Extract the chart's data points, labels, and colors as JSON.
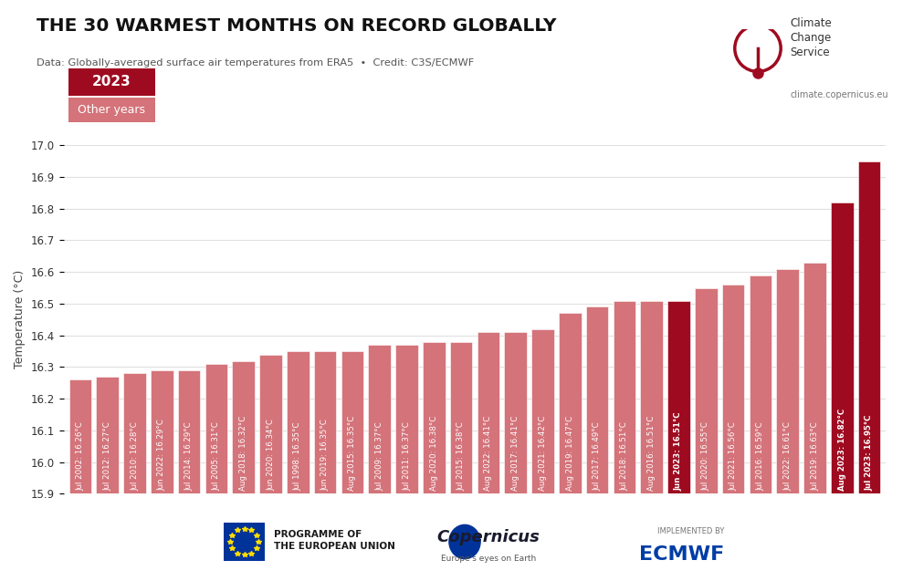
{
  "title": "THE 30 WARMEST MONTHS ON RECORD GLOBALLY",
  "subtitle": "Data: Globally-averaged surface air temperatures from ERA5  •  Credit: C3S/ECMWF",
  "ylabel": "Temperature (°C)",
  "ylim": [
    15.9,
    17.0
  ],
  "yticks": [
    15.9,
    16.0,
    16.1,
    16.2,
    16.3,
    16.4,
    16.5,
    16.6,
    16.7,
    16.8,
    16.9,
    17.0
  ],
  "bars": [
    {
      "label": "Jul 2002: 16.26°C",
      "value": 16.26,
      "year2023": false
    },
    {
      "label": "Jul 2012: 16.27°C",
      "value": 16.27,
      "year2023": false
    },
    {
      "label": "Jul 2010: 16.28°C",
      "value": 16.28,
      "year2023": false
    },
    {
      "label": "Jun 2022: 16.29°C",
      "value": 16.29,
      "year2023": false
    },
    {
      "label": "Jul 2014: 16.29°C",
      "value": 16.29,
      "year2023": false
    },
    {
      "label": "Jul 2005: 16.31°C",
      "value": 16.31,
      "year2023": false
    },
    {
      "label": "Aug 2018: 16.32°C",
      "value": 16.32,
      "year2023": false
    },
    {
      "label": "Jun 2020: 16.34°C",
      "value": 16.34,
      "year2023": false
    },
    {
      "label": "Jul 1998: 16.35°C",
      "value": 16.35,
      "year2023": false
    },
    {
      "label": "Jun 2019: 16.35°C",
      "value": 16.35,
      "year2023": false
    },
    {
      "label": "Aug 2015: 16.35°C",
      "value": 16.35,
      "year2023": false
    },
    {
      "label": "Jul 2009: 16.37°C",
      "value": 16.37,
      "year2023": false
    },
    {
      "label": "Jul 2011: 16.37°C",
      "value": 16.37,
      "year2023": false
    },
    {
      "label": "Aug 2020: 16.38°C",
      "value": 16.38,
      "year2023": false
    },
    {
      "label": "Jul 2015: 16.38°C",
      "value": 16.38,
      "year2023": false
    },
    {
      "label": "Aug 2022: 16.41°C",
      "value": 16.41,
      "year2023": false
    },
    {
      "label": "Aug 2017: 16.41°C",
      "value": 16.41,
      "year2023": false
    },
    {
      "label": "Aug 2021: 16.42°C",
      "value": 16.42,
      "year2023": false
    },
    {
      "label": "Aug 2019: 16.47°C",
      "value": 16.47,
      "year2023": false
    },
    {
      "label": "Jul 2017: 16.49°C",
      "value": 16.49,
      "year2023": false
    },
    {
      "label": "Jul 2018: 16.51°C",
      "value": 16.51,
      "year2023": false
    },
    {
      "label": "Aug 2016: 16.51°C",
      "value": 16.51,
      "year2023": false
    },
    {
      "label": "Jun 2023: 16.51°C",
      "value": 16.51,
      "year2023": true
    },
    {
      "label": "Jul 2020: 16.55°C",
      "value": 16.55,
      "year2023": false
    },
    {
      "label": "Jul 2021: 16.56°C",
      "value": 16.56,
      "year2023": false
    },
    {
      "label": "Jul 2016: 16.59°C",
      "value": 16.59,
      "year2023": false
    },
    {
      "label": "Jul 2022: 16.61°C",
      "value": 16.61,
      "year2023": false
    },
    {
      "label": "Jul 2019: 16.63°C",
      "value": 16.63,
      "year2023": false
    },
    {
      "label": "Aug 2023: 16.82°C",
      "value": 16.82,
      "year2023": true
    },
    {
      "label": "Jul 2023: 16.95°C",
      "value": 16.95,
      "year2023": true
    }
  ],
  "color_2023": "#9e0b20",
  "color_other": "#d4737a",
  "legend_2023_label": "2023",
  "legend_other_label": "Other years",
  "bg_color": "#ffffff",
  "grid_color": "#e0e0e0",
  "text_color_bar": "#ffffff",
  "bar_label_fontsize": 6.2,
  "bold_labels_2023": true
}
